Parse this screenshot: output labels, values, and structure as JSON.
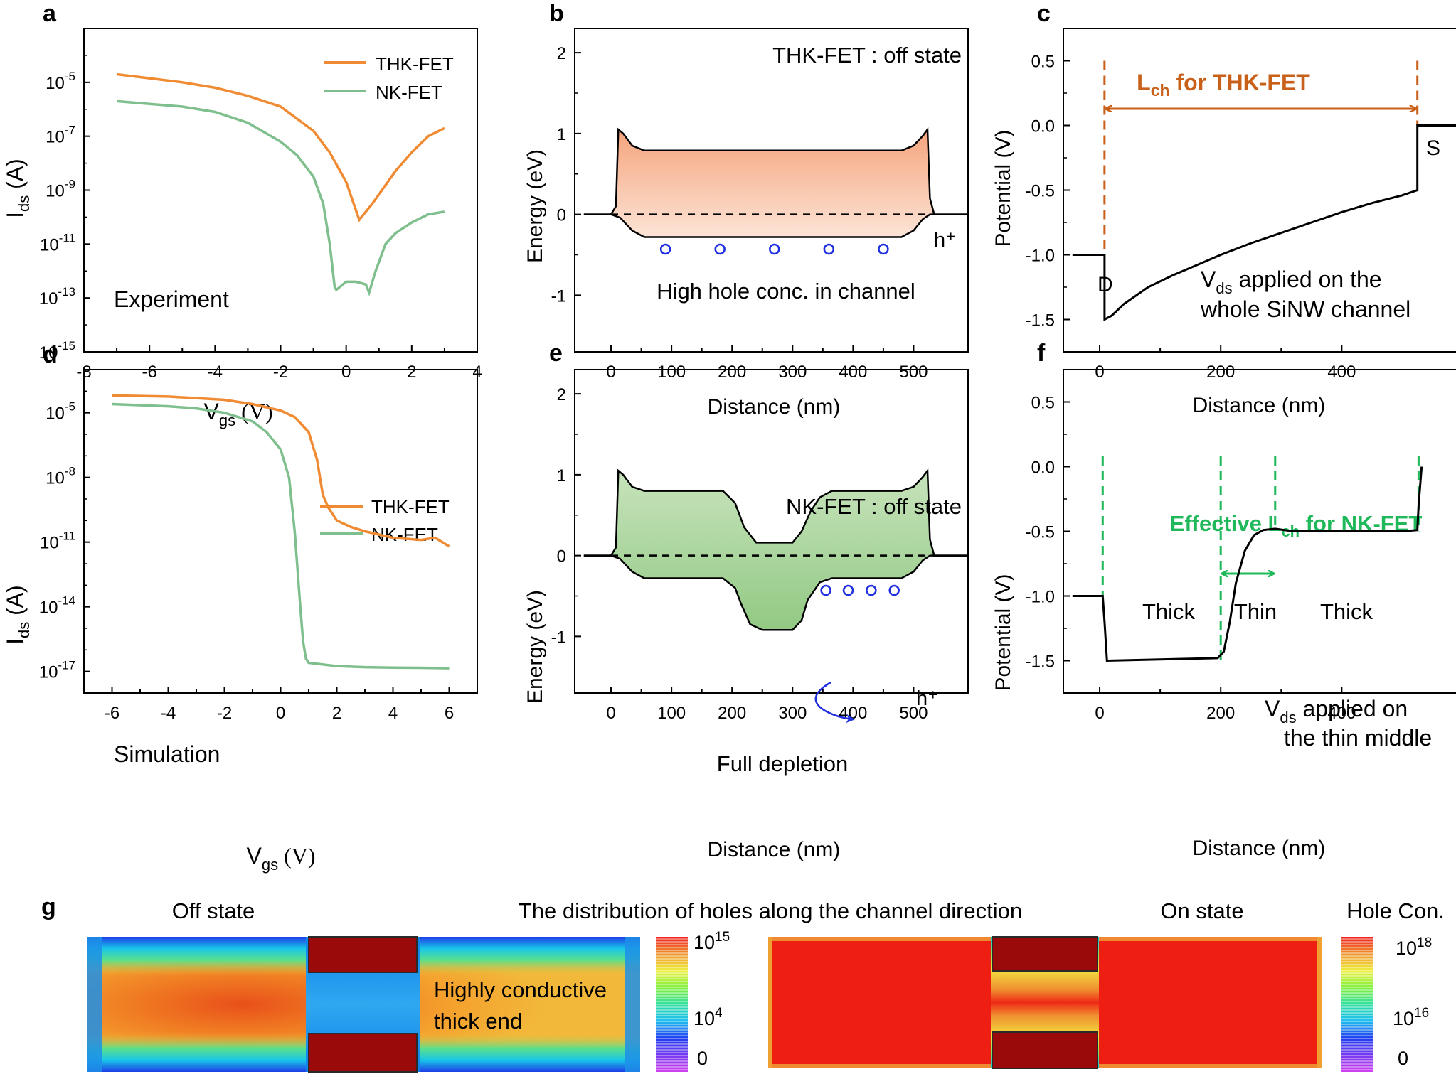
{
  "colors": {
    "thk": "#F08A33",
    "nk": "#7FBF8E",
    "accent_orange": "#C8601A",
    "accent_green": "#1FB85A",
    "hole_marker": "#1F2FE0",
    "band_orange": "#F2A57E",
    "band_green": "#A6D19A",
    "dark_red": "#9B0A0A"
  },
  "chart_data": [
    {
      "panel": "a",
      "type": "line",
      "xlabel_main": "V",
      "xlabel_sub": "gs",
      "xlabel_unit": " (V)",
      "ylabel_main": "I",
      "ylabel_sub": "ds",
      "ylabel_unit": " (A)",
      "xlim": [
        -8,
        4
      ],
      "ylim_exp": [
        -15,
        -3
      ],
      "xticks": [
        "-8",
        "-6",
        "-4",
        "-2",
        "0",
        "2",
        "4"
      ],
      "yticks": [
        {
          "base": "10",
          "exp": "-5"
        },
        {
          "base": "10",
          "exp": "-7"
        },
        {
          "base": "10",
          "exp": "-9"
        },
        {
          "base": "10",
          "exp": "-11"
        },
        {
          "base": "10",
          "exp": "-13"
        },
        {
          "base": "10",
          "exp": "-15"
        }
      ],
      "annotation": "Experiment",
      "series": [
        {
          "name": "THK-FET",
          "x": [
            -7,
            -6,
            -5,
            -4,
            -3,
            -2,
            -1,
            -0.5,
            0,
            0.2,
            0.4,
            0.8,
            1.5,
            2,
            2.5,
            3
          ],
          "log_y": [
            -4.7,
            -4.85,
            -5.0,
            -5.2,
            -5.5,
            -5.9,
            -6.8,
            -7.6,
            -8.7,
            -9.4,
            -10.1,
            -9.5,
            -8.3,
            -7.6,
            -7.0,
            -6.7
          ]
        },
        {
          "name": "NK-FET",
          "x": [
            -7,
            -6,
            -5,
            -4,
            -3,
            -2,
            -1.5,
            -1,
            -0.7,
            -0.5,
            -0.35,
            -0.3,
            0,
            0.3,
            0.6,
            0.7,
            0.9,
            1.2,
            1.5,
            2,
            2.5,
            3
          ],
          "log_y": [
            -5.7,
            -5.8,
            -5.9,
            -6.1,
            -6.5,
            -7.2,
            -7.7,
            -8.5,
            -9.5,
            -11.0,
            -12.6,
            -12.7,
            -12.4,
            -12.4,
            -12.5,
            -12.8,
            -12.0,
            -11.0,
            -10.6,
            -10.2,
            -9.9,
            -9.8
          ]
        }
      ]
    },
    {
      "panel": "b",
      "type": "area",
      "xlabel": "Distance (nm)",
      "ylabel": "Energy (eV)",
      "xlim": [
        -60,
        590
      ],
      "ylim": [
        -1.7,
        2.3
      ],
      "xticks": [
        "0",
        "100",
        "200",
        "300",
        "400",
        "500"
      ],
      "yticks": [
        "2",
        "1",
        "0",
        "-1"
      ],
      "title": "THK-FET : off state",
      "annotation": "High hole conc. in channel",
      "carrier_label": "h⁺",
      "hole_positions_nm": [
        90,
        180,
        270,
        360,
        450
      ],
      "hole_energy_ev": -0.43,
      "series": [
        {
          "name": "conduction band",
          "x": [
            -45,
            0,
            8,
            12,
            20,
            35,
            55,
            480,
            500,
            515,
            523,
            527,
            534,
            540,
            590
          ],
          "y": [
            0,
            0,
            0.1,
            1.05,
            1.0,
            0.85,
            0.79,
            0.79,
            0.85,
            0.97,
            1.05,
            0.2,
            0,
            0,
            0
          ]
        },
        {
          "name": "valence band",
          "x": [
            -45,
            0,
            15,
            35,
            55,
            480,
            500,
            515,
            527,
            540,
            590
          ],
          "y": [
            0,
            0,
            -0.04,
            -0.2,
            -0.28,
            -0.28,
            -0.2,
            -0.06,
            0,
            0,
            0
          ]
        }
      ]
    },
    {
      "panel": "c",
      "type": "line",
      "xlabel": "Distance (nm)",
      "ylabel": "Potential (V)",
      "xlim": [
        -60,
        590
      ],
      "ylim": [
        -1.75,
        0.75
      ],
      "xticks": [
        "0",
        "200",
        "400"
      ],
      "yticks": [
        "0.5",
        "0.0",
        "-0.5",
        "-1.0",
        "-1.5"
      ],
      "header_main": "L",
      "header_sub": "ch",
      "header_rest": " for THK-FET",
      "label_drain": "D",
      "label_source": "S",
      "annotation_line1_main": "V",
      "annotation_line1_sub": "ds",
      "annotation_line1_rest": " applied on the",
      "annotation_line2": "whole SiNW channel",
      "marker_x_nm": [
        8,
        525
      ],
      "series": [
        {
          "name": "potential",
          "x": [
            -45,
            8,
            8,
            20,
            40,
            80,
            120,
            160,
            200,
            250,
            300,
            350,
            400,
            450,
            500,
            525,
            525,
            590
          ],
          "y": [
            -1.0,
            -1.0,
            -1.5,
            -1.47,
            -1.38,
            -1.25,
            -1.16,
            -1.08,
            -1.0,
            -0.91,
            -0.83,
            -0.75,
            -0.67,
            -0.6,
            -0.54,
            -0.5,
            0,
            0
          ]
        }
      ]
    },
    {
      "panel": "d",
      "type": "line",
      "xlabel_main": "V",
      "xlabel_sub": "gs",
      "xlabel_unit": " (V)",
      "ylabel_main": "I",
      "ylabel_sub": "ds",
      "ylabel_unit": " (A)",
      "xlim": [
        -7,
        7
      ],
      "ylim_exp": [
        -18,
        -3
      ],
      "xticks": [
        "-6",
        "-4",
        "-2",
        "0",
        "2",
        "4",
        "6"
      ],
      "yticks": [
        {
          "base": "10",
          "exp": "-5"
        },
        {
          "base": "10",
          "exp": "-8"
        },
        {
          "base": "10",
          "exp": "-11"
        },
        {
          "base": "10",
          "exp": "-14"
        },
        {
          "base": "10",
          "exp": "-17"
        }
      ],
      "annotation": "Simulation",
      "series": [
        {
          "name": "THK-FET",
          "x": [
            -6,
            -4,
            -2,
            -1,
            0,
            0.5,
            1,
            1.3,
            1.5,
            1.7,
            2,
            2.5,
            3,
            4,
            5,
            5.5,
            6
          ],
          "log_y": [
            -4.2,
            -4.25,
            -4.4,
            -4.6,
            -4.9,
            -5.2,
            -5.9,
            -7.2,
            -8.8,
            -9.4,
            -10.0,
            -10.3,
            -10.5,
            -10.8,
            -10.9,
            -10.8,
            -11.2
          ]
        },
        {
          "name": "NK-FET",
          "x": [
            -6,
            -4,
            -3,
            -2,
            -1,
            -0.5,
            0,
            0.3,
            0.5,
            0.7,
            0.8,
            0.9,
            1,
            2,
            3,
            4,
            5,
            6
          ],
          "log_y": [
            -4.6,
            -4.7,
            -4.8,
            -5.0,
            -5.4,
            -5.9,
            -6.7,
            -8.0,
            -10.5,
            -14.0,
            -15.6,
            -16.4,
            -16.6,
            -16.75,
            -16.8,
            -16.82,
            -16.83,
            -16.85
          ]
        }
      ]
    },
    {
      "panel": "e",
      "type": "area",
      "xlabel": "Distance (nm)",
      "ylabel": "Energy (eV)",
      "xlim": [
        -60,
        590
      ],
      "ylim": [
        -1.7,
        2.3
      ],
      "xticks": [
        "0",
        "100",
        "200",
        "300",
        "400",
        "500"
      ],
      "yticks": [
        "2",
        "1",
        "0",
        "-1"
      ],
      "title": "NK-FET : off state",
      "annotation": "Full depletion",
      "carrier_label": "h⁺",
      "hole_positions_nm": [
        355,
        392,
        430,
        468
      ],
      "hole_energy_ev": -0.43,
      "series": [
        {
          "name": "conduction band",
          "x": [
            -45,
            0,
            8,
            12,
            20,
            35,
            55,
            185,
            205,
            220,
            240,
            300,
            315,
            330,
            345,
            365,
            480,
            500,
            515,
            523,
            527,
            534,
            540,
            590
          ],
          "y": [
            0,
            0,
            0.1,
            1.05,
            1.0,
            0.85,
            0.8,
            0.8,
            0.65,
            0.35,
            0.16,
            0.16,
            0.3,
            0.55,
            0.72,
            0.8,
            0.8,
            0.85,
            0.97,
            1.05,
            0.2,
            0,
            0,
            0
          ]
        },
        {
          "name": "valence band",
          "x": [
            -45,
            0,
            15,
            35,
            55,
            185,
            205,
            215,
            230,
            250,
            300,
            315,
            325,
            345,
            365,
            480,
            500,
            515,
            527,
            540,
            590
          ],
          "y": [
            0,
            0,
            -0.04,
            -0.2,
            -0.28,
            -0.28,
            -0.4,
            -0.6,
            -0.85,
            -0.92,
            -0.92,
            -0.8,
            -0.55,
            -0.33,
            -0.28,
            -0.28,
            -0.2,
            -0.06,
            0,
            0,
            0
          ]
        }
      ]
    },
    {
      "panel": "f",
      "type": "line",
      "xlabel": "Distance (nm)",
      "ylabel": "Potential (V)",
      "xlim": [
        -60,
        590
      ],
      "ylim": [
        -1.75,
        0.75
      ],
      "xticks": [
        "0",
        "200",
        "400"
      ],
      "yticks": [
        "0.5",
        "0.0",
        "-0.5",
        "-1.0",
        "-1.5"
      ],
      "header_pre": "Effective L",
      "header_sub": "ch",
      "header_rest": " for NK-FET",
      "region_labels": [
        "Thick",
        "Thin",
        "Thick"
      ],
      "annotation_line1_main": "V",
      "annotation_line1_sub": "ds",
      "annotation_line1_rest": " applied on",
      "annotation_line2": "the thin middle",
      "marker_x_nm": [
        5,
        200,
        290,
        527
      ],
      "series": [
        {
          "name": "potential",
          "x": [
            -45,
            5,
            8,
            12,
            100,
            195,
            205,
            215,
            225,
            240,
            255,
            270,
            290,
            320,
            400,
            500,
            525,
            527,
            532
          ],
          "y": [
            -1.0,
            -1.0,
            -1.2,
            -1.5,
            -1.49,
            -1.48,
            -1.43,
            -1.2,
            -0.9,
            -0.65,
            -0.53,
            -0.49,
            -0.48,
            -0.5,
            -0.5,
            -0.5,
            -0.49,
            -0.3,
            0
          ]
        }
      ]
    }
  ],
  "panel_g": {
    "letter": "g",
    "label_off": "Off state",
    "title": "The distribution of holes along the channel direction",
    "label_on": "On state",
    "label_colorbar": "Hole Con.",
    "annotation_line1": "Highly conductive",
    "annotation_line2": "thick end",
    "colorbar_left": [
      {
        "base": "10",
        "exp": "15"
      },
      {
        "base": "10",
        "exp": "4"
      },
      {
        "base": "0",
        "exp": ""
      }
    ],
    "colorbar_right": [
      {
        "base": "10",
        "exp": "18"
      },
      {
        "base": "10",
        "exp": "16"
      },
      {
        "base": "0",
        "exp": ""
      }
    ]
  },
  "panel_letters": [
    "a",
    "b",
    "c",
    "d",
    "e",
    "f"
  ]
}
